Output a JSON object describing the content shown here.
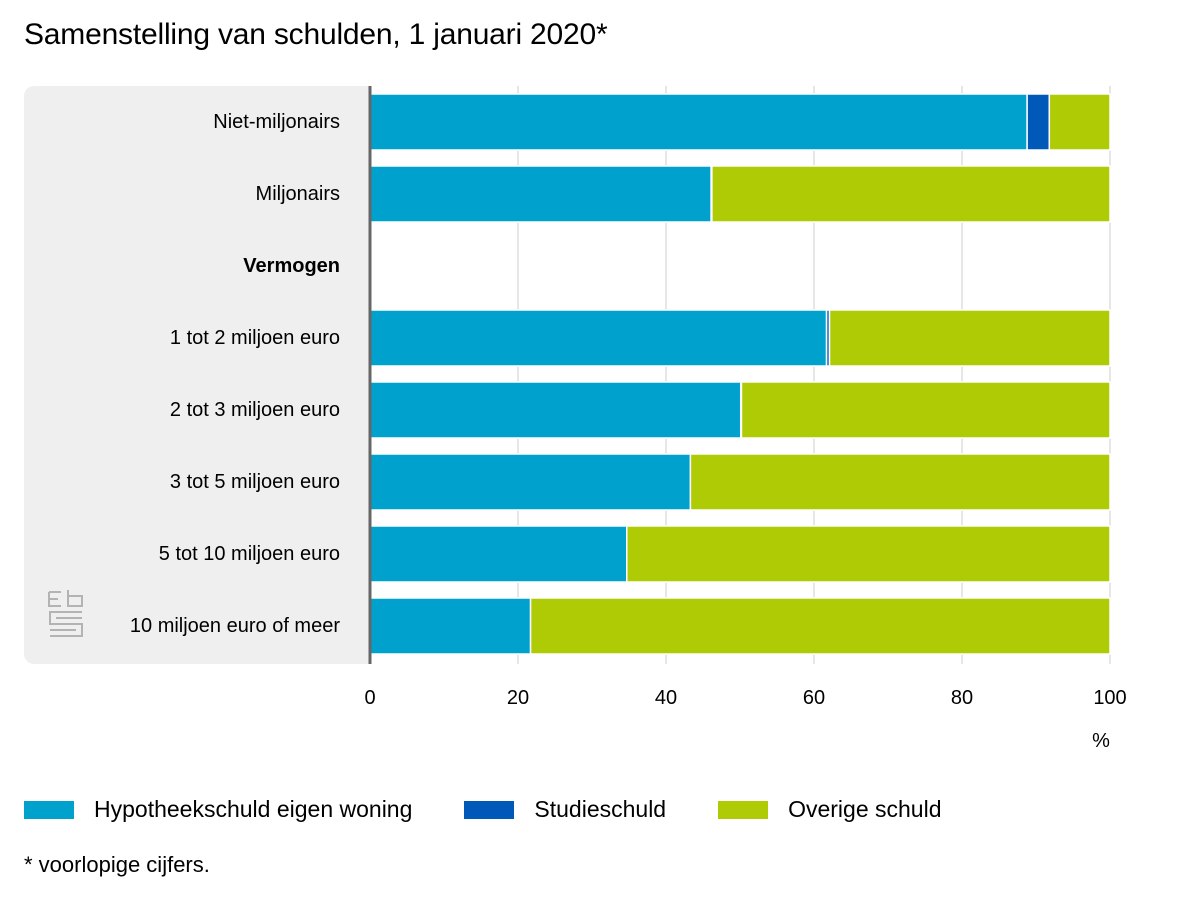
{
  "chart_data": {
    "type": "bar",
    "orientation": "horizontal",
    "stacked": true,
    "title": "Samenstelling van schulden, 1 januari 2020*",
    "categories": [
      "Niet-miljonairs",
      "Miljonairs",
      "Vermogen",
      "1 tot 2 miljoen euro",
      "2 tot 3 miljoen euro",
      "3 tot 5 miljoen euro",
      "5 tot 10 miljoen euro",
      "10 miljoen euro of meer"
    ],
    "heading_categories": [
      "Vermogen"
    ],
    "series": [
      {
        "name": "Hypotheekschuld eigen woning",
        "color": "#00a1cd",
        "values": [
          88.8,
          46.1,
          null,
          61.7,
          50.1,
          43.3,
          34.7,
          21.7
        ]
      },
      {
        "name": "Studieschuld",
        "color": "#0058b8",
        "values": [
          3.0,
          0.1,
          null,
          0.4,
          0.1,
          0.0,
          0.0,
          0.0
        ]
      },
      {
        "name": "Overige schuld",
        "color": "#afcb05",
        "values": [
          8.2,
          53.8,
          null,
          37.9,
          49.8,
          56.7,
          65.3,
          78.3
        ]
      }
    ],
    "xlabel": "%",
    "xlim": [
      0,
      100
    ],
    "xticks": [
      0,
      20,
      40,
      60,
      80,
      100
    ],
    "grid": true,
    "legend_position": "bottom"
  },
  "footnote": "* voorlopige cijfers.",
  "colors": {
    "grid": "#cccccc",
    "axis": "#666666",
    "panel": "#efefef",
    "logo": "#b3b3b3"
  }
}
